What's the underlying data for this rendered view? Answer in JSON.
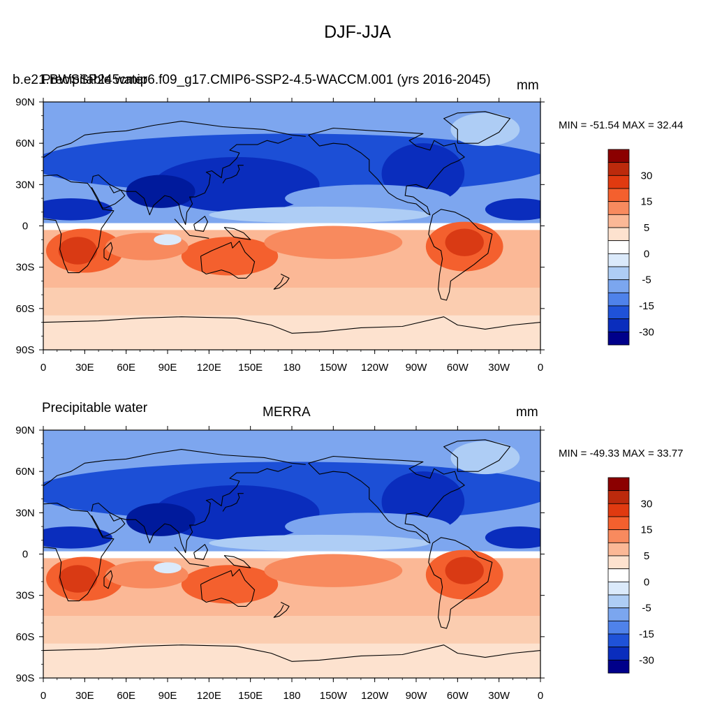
{
  "main_title": "DJF-JJA",
  "panels": [
    {
      "left_string": "Precipitable water",
      "center_string": "b.e21.BWSSP245cmip6.f09_g17.CMIP6-SSP2-4.5-WACCM.001 (yrs 2016-2045)",
      "right_string": "mm",
      "min_max": "MIN = -51.54 MAX =  32.44"
    },
    {
      "left_string": "Precipitable water",
      "center_string": "MERRA",
      "right_string": "mm",
      "min_max": "MIN = -49.33 MAX =  33.77"
    }
  ],
  "colorbar": {
    "labels": [
      "30",
      "15",
      "5",
      "0",
      "-5",
      "-15",
      "-30"
    ],
    "colors": [
      "#8b0000",
      "#bc2a0c",
      "#e03a10",
      "#f4602e",
      "#f88a5e",
      "#fbb896",
      "#fde2cf",
      "#ffffff",
      "#dbeafb",
      "#aecdf5",
      "#7ba6ef",
      "#4f82ea",
      "#1f52d8",
      "#0a2dbd",
      "#00008a"
    ]
  },
  "colors": {
    "ocean_blue": "#7da6ef",
    "strong_blue": "#1c4fd6",
    "deep_blue": "#001a9c",
    "light_peach": "#fde2cf",
    "salmon": "#fbb896",
    "orange": "#f4602e",
    "red": "#d93a14",
    "coast": "#000000"
  },
  "chart_data": [
    {
      "type": "heatmap",
      "title": "DJF-JJA",
      "subtitle": "b.e21.BWSSP245cmip6.f09_g17.CMIP6-SSP2-4.5-WACCM.001 (yrs 2016-2045)",
      "variable": "Precipitable water",
      "units": "mm",
      "min": -51.54,
      "max": 32.44,
      "x_ticks": [
        "0",
        "30E",
        "60E",
        "90E",
        "120E",
        "150E",
        "180",
        "150W",
        "120W",
        "90W",
        "60W",
        "30W",
        "0"
      ],
      "y_ticks": [
        "90N",
        "60N",
        "30N",
        "0",
        "30S",
        "60S",
        "90S"
      ],
      "xlim": [
        0,
        360
      ],
      "ylim": [
        -90,
        90
      ],
      "contour_levels": [
        -30,
        -15,
        -5,
        0,
        5,
        15,
        30
      ]
    },
    {
      "type": "heatmap",
      "title": "DJF-JJA",
      "subtitle": "MERRA",
      "variable": "Precipitable water",
      "units": "mm",
      "min": -49.33,
      "max": 33.77,
      "x_ticks": [
        "0",
        "30E",
        "60E",
        "90E",
        "120E",
        "150E",
        "180",
        "150W",
        "120W",
        "90W",
        "60W",
        "30W",
        "0"
      ],
      "y_ticks": [
        "90N",
        "60N",
        "30N",
        "0",
        "30S",
        "60S",
        "90S"
      ],
      "xlim": [
        0,
        360
      ],
      "ylim": [
        -90,
        90
      ],
      "contour_levels": [
        -30,
        -15,
        -5,
        0,
        5,
        15,
        30
      ]
    }
  ]
}
